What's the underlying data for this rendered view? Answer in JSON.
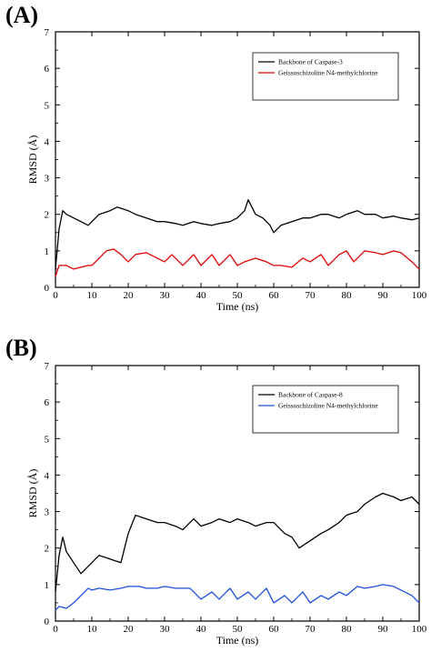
{
  "figure": {
    "panels": [
      {
        "letter": "(A)"
      },
      {
        "letter": "(B)"
      }
    ]
  },
  "chart_data": [
    {
      "type": "line",
      "panel": "(A)",
      "xlabel": "Time (ns)",
      "ylabel": "RMSD (Å)",
      "xlim": [
        0,
        100
      ],
      "ylim": [
        0,
        7
      ],
      "xticks": [
        0,
        10,
        20,
        30,
        40,
        50,
        60,
        70,
        80,
        90,
        100
      ],
      "yticks": [
        0,
        1,
        2,
        3,
        4,
        5,
        6,
        7
      ],
      "grid": false,
      "legend_position": "top-right",
      "series": [
        {
          "name": "Backbone of Caspase-3",
          "color": "#000000",
          "x": [
            0,
            1,
            2,
            3,
            5,
            7,
            9,
            10,
            12,
            15,
            17,
            20,
            22,
            25,
            28,
            30,
            33,
            35,
            38,
            40,
            43,
            45,
            48,
            50,
            52,
            53,
            55,
            57,
            59,
            60,
            62,
            65,
            68,
            70,
            73,
            75,
            78,
            80,
            83,
            85,
            88,
            90,
            93,
            95,
            98,
            100
          ],
          "values": [
            0.5,
            1.6,
            2.1,
            2.0,
            1.9,
            1.8,
            1.7,
            1.8,
            2.0,
            2.1,
            2.2,
            2.1,
            2.0,
            1.9,
            1.8,
            1.8,
            1.75,
            1.7,
            1.8,
            1.75,
            1.7,
            1.75,
            1.8,
            1.9,
            2.1,
            2.4,
            2.0,
            1.9,
            1.7,
            1.5,
            1.7,
            1.8,
            1.9,
            1.9,
            2.0,
            2.0,
            1.9,
            2.0,
            2.1,
            2.0,
            2.0,
            1.9,
            1.95,
            1.9,
            1.85,
            1.9
          ]
        },
        {
          "name": "Geissoschizoline N4-methylchlorine",
          "color": "#e00000",
          "x": [
            0,
            1,
            3,
            5,
            7,
            9,
            10,
            12,
            14,
            16,
            18,
            20,
            22,
            25,
            28,
            30,
            32,
            35,
            38,
            40,
            43,
            45,
            48,
            50,
            52,
            55,
            58,
            60,
            62,
            65,
            68,
            70,
            73,
            75,
            78,
            80,
            82,
            85,
            88,
            90,
            93,
            95,
            98,
            100
          ],
          "values": [
            0.3,
            0.6,
            0.6,
            0.5,
            0.55,
            0.6,
            0.6,
            0.8,
            1.0,
            1.05,
            0.9,
            0.7,
            0.9,
            0.95,
            0.8,
            0.7,
            0.9,
            0.6,
            0.9,
            0.6,
            0.9,
            0.6,
            0.9,
            0.6,
            0.7,
            0.8,
            0.7,
            0.6,
            0.6,
            0.55,
            0.8,
            0.7,
            0.9,
            0.6,
            0.9,
            1.0,
            0.7,
            1.0,
            0.95,
            0.9,
            1.0,
            0.95,
            0.7,
            0.5
          ]
        }
      ]
    },
    {
      "type": "line",
      "panel": "(B)",
      "xlabel": "Time (ns)",
      "ylabel": "RMSD (Å)",
      "xlim": [
        0,
        100
      ],
      "ylim": [
        0,
        7
      ],
      "xticks": [
        0,
        10,
        20,
        30,
        40,
        50,
        60,
        70,
        80,
        90,
        100
      ],
      "yticks": [
        0,
        1,
        2,
        3,
        4,
        5,
        6,
        7
      ],
      "grid": false,
      "legend_position": "top-right",
      "series": [
        {
          "name": "Backbone of Caspase-8",
          "color": "#000000",
          "x": [
            0,
            1,
            2,
            3,
            5,
            7,
            9,
            10,
            12,
            15,
            18,
            20,
            22,
            25,
            28,
            30,
            33,
            35,
            38,
            40,
            43,
            45,
            48,
            50,
            53,
            55,
            58,
            60,
            63,
            65,
            67,
            70,
            73,
            75,
            78,
            80,
            83,
            85,
            88,
            90,
            93,
            95,
            98,
            100
          ],
          "values": [
            0.8,
            1.8,
            2.3,
            1.9,
            1.6,
            1.3,
            1.5,
            1.6,
            1.8,
            1.7,
            1.6,
            2.4,
            2.9,
            2.8,
            2.7,
            2.7,
            2.6,
            2.5,
            2.8,
            2.6,
            2.7,
            2.8,
            2.7,
            2.8,
            2.7,
            2.6,
            2.7,
            2.7,
            2.4,
            2.3,
            2.0,
            2.2,
            2.4,
            2.5,
            2.7,
            2.9,
            3.0,
            3.2,
            3.4,
            3.5,
            3.4,
            3.3,
            3.4,
            3.2
          ]
        },
        {
          "name": "Geissoschizoline N4-methylchlorine",
          "color": "#1a4fd8",
          "x": [
            0,
            1,
            3,
            5,
            7,
            9,
            10,
            12,
            15,
            18,
            20,
            23,
            25,
            28,
            30,
            33,
            35,
            37,
            40,
            43,
            45,
            48,
            50,
            53,
            55,
            58,
            60,
            63,
            65,
            68,
            70,
            73,
            75,
            78,
            80,
            83,
            85,
            88,
            90,
            93,
            95,
            98,
            100
          ],
          "values": [
            0.3,
            0.4,
            0.35,
            0.5,
            0.7,
            0.9,
            0.85,
            0.9,
            0.85,
            0.9,
            0.95,
            0.95,
            0.9,
            0.9,
            0.95,
            0.9,
            0.9,
            0.9,
            0.6,
            0.8,
            0.6,
            0.9,
            0.6,
            0.8,
            0.6,
            0.9,
            0.5,
            0.7,
            0.5,
            0.8,
            0.5,
            0.7,
            0.6,
            0.8,
            0.7,
            0.95,
            0.9,
            0.95,
            1.0,
            0.95,
            0.85,
            0.7,
            0.5
          ]
        }
      ]
    }
  ]
}
